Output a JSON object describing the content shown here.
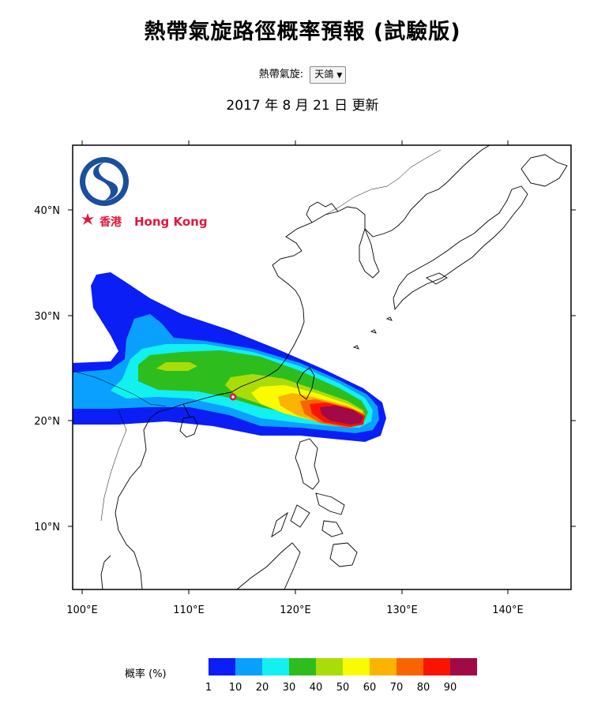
{
  "header": {
    "title": "熱帶氣旋路徑概率預報 (試驗版)",
    "selector_label": "熱帶氣旋:",
    "selector_value": "天鴿",
    "updated": "2017 年 8 月 21 日 更新"
  },
  "logo": {
    "text_zh": "香港",
    "text_en": "Hong Kong"
  },
  "map": {
    "lat_ticks": [
      "40°N",
      "30°N",
      "20°N",
      "10°N"
    ],
    "lon_ticks": [
      "100°E",
      "110°E",
      "120°E",
      "130°E",
      "140°E"
    ],
    "hong_kong_marker_color": "#e0183c"
  },
  "legend": {
    "label": "概率 (%)",
    "ticks": [
      "1",
      "10",
      "20",
      "30",
      "40",
      "50",
      "60",
      "70",
      "80",
      "90"
    ],
    "colors": [
      "#0a1ef5",
      "#0aa0ff",
      "#12f0f0",
      "#2dbe1e",
      "#aadc0a",
      "#fafa00",
      "#fab400",
      "#fa6400",
      "#fa1400",
      "#a00a46"
    ]
  }
}
